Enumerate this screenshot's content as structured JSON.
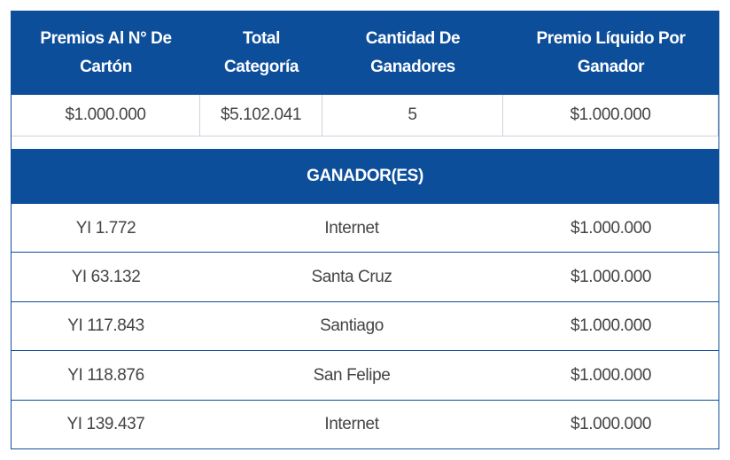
{
  "table": {
    "header": [
      "Premios Al N° De Cartón",
      "Total Categoría",
      "Cantidad De Ganadores",
      "Premio Líquido Por Ganador"
    ],
    "rows": [
      [
        "$1.000.000",
        "$5.102.041",
        "5",
        "$1.000.000"
      ]
    ]
  },
  "section_title": "GANADOR(ES)",
  "winners": [
    [
      "YI 1.772",
      "Internet",
      "$1.000.000"
    ],
    [
      "YI 63.132",
      "Santa Cruz",
      "$1.000.000"
    ],
    [
      "YI 117.843",
      "Santiago",
      "$1.000.000"
    ],
    [
      "YI 118.876",
      "San Felipe",
      "$1.000.000"
    ],
    [
      "YI 139.437",
      "Internet",
      "$1.000.000"
    ]
  ]
}
